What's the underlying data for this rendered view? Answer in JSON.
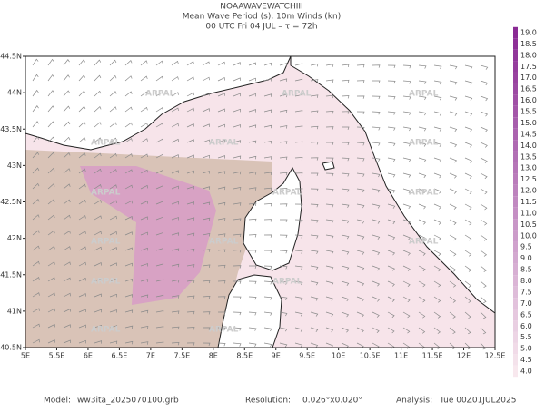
{
  "header": {
    "title": "NOAAWAVEWATCHIII",
    "subtitle": "Mean Wave Period (s), 10m Winds (kn)",
    "time": "00 UTC Fri 04 JUL  –  τ = 72h"
  },
  "map": {
    "xlim": [
      5,
      12.5
    ],
    "ylim": [
      40.5,
      44.5
    ],
    "xticks": [
      {
        "value": 5,
        "label": "5E"
      },
      {
        "value": 5.5,
        "label": "5.5E"
      },
      {
        "value": 6,
        "label": "6E"
      },
      {
        "value": 6.5,
        "label": "6.5E"
      },
      {
        "value": 7,
        "label": "7E"
      },
      {
        "value": 7.5,
        "label": "7.5E"
      },
      {
        "value": 8,
        "label": "8E"
      },
      {
        "value": 8.5,
        "label": "8.5E"
      },
      {
        "value": 9,
        "label": "9E"
      },
      {
        "value": 9.5,
        "label": "9.5E"
      },
      {
        "value": 10,
        "label": "10E"
      },
      {
        "value": 10.5,
        "label": "10.5E"
      },
      {
        "value": 11,
        "label": "11E"
      },
      {
        "value": 11.5,
        "label": "11.5E"
      },
      {
        "value": 12,
        "label": "12E"
      },
      {
        "value": 12.5,
        "label": "12.5E"
      }
    ],
    "yticks": [
      {
        "value": 40.5,
        "label": "40.5N"
      },
      {
        "value": 41,
        "label": "41N"
      },
      {
        "value": 41.5,
        "label": "41.5N"
      },
      {
        "value": 42,
        "label": "42N"
      },
      {
        "value": 42.5,
        "label": "42.5N"
      },
      {
        "value": 43,
        "label": "43N"
      },
      {
        "value": 43.5,
        "label": "43.5N"
      },
      {
        "value": 44,
        "label": "44N"
      },
      {
        "value": 44.5,
        "label": "44.5N"
      }
    ]
  },
  "colorbar": {
    "ticks": [
      {
        "value": 19,
        "label": "19.0"
      },
      {
        "value": 18.5,
        "label": "18.5"
      },
      {
        "value": 18,
        "label": "18.0"
      },
      {
        "value": 17.5,
        "label": "17.5"
      },
      {
        "value": 17,
        "label": "17.0"
      },
      {
        "value": 16.5,
        "label": "16.5"
      },
      {
        "value": 16,
        "label": "16.0"
      },
      {
        "value": 15.5,
        "label": "15.5"
      },
      {
        "value": 15,
        "label": "15.0"
      },
      {
        "value": 14.5,
        "label": "14.5"
      },
      {
        "value": 14,
        "label": "14.0"
      },
      {
        "value": 13.5,
        "label": "13.5"
      },
      {
        "value": 13,
        "label": "13.0"
      },
      {
        "value": 12.5,
        "label": "12.5"
      },
      {
        "value": 12,
        "label": "12.0"
      },
      {
        "value": 11.5,
        "label": "11.5"
      },
      {
        "value": 11,
        "label": "11.0"
      },
      {
        "value": 10.5,
        "label": "10.5"
      },
      {
        "value": 10,
        "label": "10.0"
      },
      {
        "value": 9.5,
        "label": "9.5"
      },
      {
        "value": 9,
        "label": "9.0"
      },
      {
        "value": 8.5,
        "label": "8.5"
      },
      {
        "value": 8,
        "label": "8.0"
      },
      {
        "value": 7.5,
        "label": "7.5"
      },
      {
        "value": 7,
        "label": "7.0"
      },
      {
        "value": 6.5,
        "label": "6.5"
      },
      {
        "value": 6,
        "label": "6.0"
      },
      {
        "value": 5.5,
        "label": "5.5"
      },
      {
        "value": 5,
        "label": "5.0"
      },
      {
        "value": 4.5,
        "label": "4.5"
      },
      {
        "value": 4,
        "label": "4.0"
      }
    ]
  },
  "watermark": "ARPAL",
  "footer": {
    "model_label": "Model:",
    "model": "ww3ita_2025070100.grb",
    "resolution_label": "Resolution:",
    "resolution": "0.026°x0.020°",
    "analysis_label": "Analysis:",
    "analysis": "Tue 00Z01JUL2025"
  }
}
